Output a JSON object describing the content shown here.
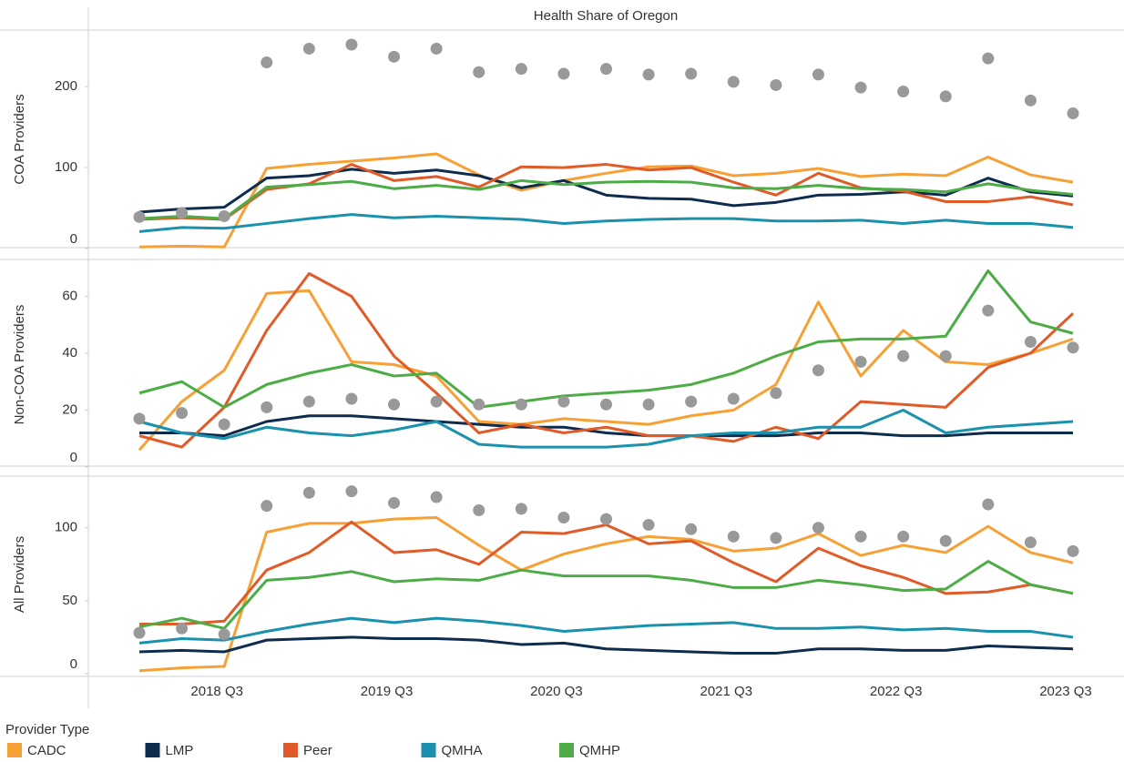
{
  "chart_data": {
    "type": "line",
    "title": "Health Share of Oregon",
    "legend_title": "Provider Type",
    "categories": [
      null,
      null,
      "2018 Q3",
      null,
      null,
      null,
      "2019 Q3",
      null,
      null,
      null,
      "2020 Q3",
      null,
      null,
      null,
      "2021 Q3",
      null,
      null,
      null,
      "2022 Q3",
      null,
      null,
      null,
      "2023 Q3"
    ],
    "legend": [
      {
        "name": "CADC",
        "color": "#f7a035"
      },
      {
        "name": "LMP",
        "color": "#0e2c4e"
      },
      {
        "name": "Peer",
        "color": "#e05b27"
      },
      {
        "name": "QMHA",
        "color": "#1a91ad"
      },
      {
        "name": "QMHP",
        "color": "#4eac47"
      }
    ],
    "panels": [
      {
        "ylabel": "COA Providers",
        "ylim": [
          0,
          270
        ],
        "yticks": [
          0,
          100,
          200
        ],
        "markers": {
          "color": "#999999",
          "values": [
            39,
            44,
            40,
            230,
            247,
            252,
            237,
            247,
            218,
            222,
            216,
            222,
            215,
            216,
            206,
            202,
            215,
            199,
            194,
            188,
            235,
            183,
            167
          ]
        },
        "series": [
          {
            "values": [
              2,
              3,
              2,
              99,
              104,
              108,
              112,
              117,
              91,
              72,
              84,
              93,
              101,
              102,
              90,
              93,
              99,
              89,
              92,
              90,
              113,
              91,
              82
            ]
          },
          {
            "values": [
              45,
              49,
              51,
              87,
              90,
              98,
              93,
              97,
              90,
              75,
              84,
              66,
              62,
              61,
              53,
              57,
              66,
              67,
              70,
              66,
              87,
              70,
              65
            ]
          },
          {
            "values": [
              36,
              38,
              36,
              73,
              80,
              104,
              84,
              89,
              76,
              101,
              100,
              104,
              97,
              100,
              82,
              66,
              93,
              75,
              71,
              58,
              58,
              64,
              54
            ]
          },
          {
            "values": [
              21,
              26,
              25,
              31,
              37,
              42,
              38,
              40,
              38,
              36,
              31,
              34,
              36,
              37,
              37,
              34,
              34,
              35,
              31,
              35,
              31,
              31,
              26
            ]
          },
          {
            "values": [
              37,
              40,
              37,
              76,
              79,
              83,
              74,
              78,
              73,
              84,
              79,
              82,
              83,
              82,
              75,
              74,
              78,
              74,
              73,
              70,
              80,
              72,
              67
            ]
          }
        ]
      },
      {
        "ylabel": "Non-COA Providers",
        "ylim": [
          0,
          72
        ],
        "yticks": [
          0,
          20,
          40,
          60
        ],
        "markers": {
          "color": "#999999",
          "values": [
            17,
            19,
            15,
            21,
            23,
            24,
            22,
            23,
            22,
            22,
            23,
            22,
            22,
            23,
            24,
            26,
            34,
            37,
            39,
            39,
            55,
            44,
            42
          ]
        },
        "series": [
          {
            "values": [
              6,
              23,
              34,
              61,
              62,
              37,
              36,
              32,
              16,
              15,
              17,
              16,
              15,
              18,
              20,
              29,
              58,
              32,
              48,
              37,
              36,
              40,
              45
            ]
          },
          {
            "values": [
              12,
              12,
              11,
              16,
              18,
              18,
              17,
              16,
              15,
              14,
              14,
              12,
              11,
              11,
              11,
              11,
              12,
              12,
              11,
              11,
              12,
              12,
              12
            ]
          },
          {
            "values": [
              11,
              7,
              21,
              48,
              68,
              60,
              39,
              26,
              12,
              15,
              12,
              14,
              11,
              11,
              9,
              14,
              10,
              23,
              22,
              21,
              35,
              40,
              54
            ]
          },
          {
            "values": [
              16,
              12,
              10,
              14,
              12,
              11,
              13,
              16,
              8,
              7,
              7,
              7,
              8,
              11,
              12,
              12,
              14,
              14,
              20,
              12,
              14,
              15,
              16
            ]
          },
          {
            "values": [
              26,
              30,
              21,
              29,
              33,
              36,
              32,
              33,
              21,
              23,
              25,
              26,
              27,
              29,
              33,
              39,
              44,
              45,
              45,
              46,
              69,
              51,
              47
            ]
          }
        ]
      },
      {
        "ylabel": "All Providers",
        "ylim": [
          0,
          136
        ],
        "yticks": [
          0,
          50,
          100
        ],
        "markers": {
          "color": "#999999",
          "values": [
            28,
            31,
            27,
            115,
            124,
            125,
            117,
            121,
            112,
            113,
            107,
            106,
            102,
            99,
            94,
            93,
            100,
            94,
            94,
            91,
            116,
            90,
            84
          ]
        },
        "series": [
          {
            "values": [
              2,
              4,
              5,
              97,
              103,
              103,
              106,
              107,
              88,
              71,
              82,
              89,
              94,
              92,
              84,
              86,
              96,
              81,
              88,
              83,
              101,
              83,
              76
            ]
          },
          {
            "values": [
              15,
              16,
              15,
              23,
              24,
              25,
              24,
              24,
              23,
              20,
              21,
              17,
              16,
              15,
              14,
              14,
              17,
              17,
              16,
              16,
              19,
              18,
              17
            ]
          },
          {
            "values": [
              34,
              34,
              36,
              71,
              83,
              104,
              83,
              85,
              75,
              97,
              96,
              102,
              89,
              91,
              76,
              63,
              86,
              74,
              66,
              55,
              56,
              61,
              55
            ]
          },
          {
            "values": [
              21,
              24,
              23,
              29,
              34,
              38,
              35,
              38,
              36,
              33,
              29,
              31,
              33,
              34,
              35,
              31,
              31,
              32,
              30,
              31,
              29,
              29,
              25
            ]
          },
          {
            "values": [
              32,
              38,
              31,
              64,
              66,
              70,
              63,
              65,
              64,
              71,
              67,
              67,
              67,
              64,
              59,
              59,
              64,
              61,
              57,
              58,
              77,
              61,
              55
            ]
          }
        ]
      }
    ]
  }
}
